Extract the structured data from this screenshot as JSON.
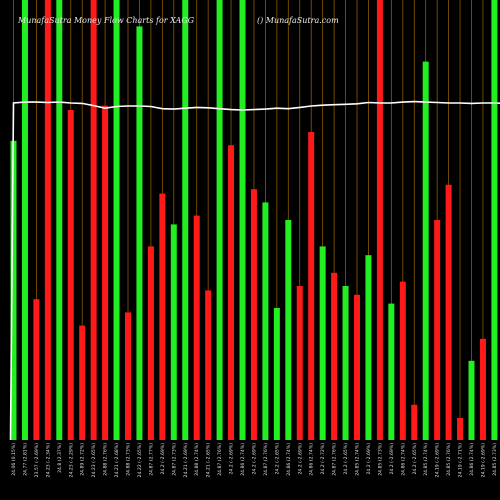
{
  "chart_data": {
    "type": "bar",
    "title": "MunafaSutra Money Flow Charts for XAGG",
    "watermark": "() MunafaSutra.com",
    "colors": {
      "up": "#22ee22",
      "down": "#ff1a1a",
      "background": "#000000",
      "gridline": "#8b5a00",
      "line": "#ffffff"
    },
    "ylim": [
      0,
      100
    ],
    "categories": [
      "24.06 (0.15%)",
      "24.77 (2.81%)",
      "23.57 (-2.69%)",
      "24.23 (-2.34%)",
      "24.8 (2.37%)",
      "24.23 (-2.29%)",
      "24.89 (2.72%)",
      "24.23 (-2.65%)",
      "24.88 (2.76%)",
      "24.21 (-2.68%)",
      "24.88 (2.73%)",
      "24.22 (-2.65%)",
      "24.87 (2.77%)",
      "24.2 (-2.69%)",
      "24.87 (2.73%)",
      "24.21 (-2.69%)",
      "24.88 (2.74%)",
      "24.21 (-2.65%)",
      "24.87 (2.76%)",
      "24.2 (-2.69%)",
      "24.86 (2.74%)",
      "24.2 (-2.69%)",
      "24.87 (2.76%)",
      "24.2 (-2.65%)",
      "24.86 (2.74%)",
      "24.2 (-2.69%)",
      "24.86 (2.74%)",
      "24.2 (-2.72%)",
      "24.87 (2.76%)",
      "24.2 (-2.65%)",
      "24.85 (2.74%)",
      "24.2 (-2.69%)",
      "24.85 (2.73%)",
      "24.2 (-2.69%)",
      "24.86 (2.74%)",
      "24.2 (-2.65%)",
      "24.85 (2.74%)",
      "24.19 (-2.69%)",
      "24.85 (2.76%)",
      "24.19 (-2.71%)",
      "24.86 (2.74%)",
      "24.19 (-2.69%)",
      "24.85 (2.73%)",
      "24.2 (-2.65%)"
    ],
    "series": [
      {
        "direction": [
          "up",
          "up",
          "down",
          "down",
          "up",
          "down",
          "down",
          "down",
          "down",
          "up",
          "down",
          "up",
          "down",
          "down",
          "up",
          "up",
          "down",
          "down",
          "up",
          "down",
          "up",
          "down",
          "up",
          "up",
          "up",
          "down",
          "down",
          "up",
          "down",
          "up",
          "down",
          "up",
          "down",
          "up",
          "down",
          "down",
          "up",
          "down",
          "down",
          "down",
          "up",
          "down",
          "up",
          "down"
        ],
        "values": [
          68,
          100,
          32,
          100,
          100,
          75,
          26,
          100,
          76,
          100,
          29,
          94,
          44,
          56,
          49,
          100,
          51,
          34,
          100,
          67,
          100,
          57,
          54,
          30,
          50,
          35,
          70,
          44,
          38,
          35,
          33,
          42,
          100,
          31,
          36,
          8,
          86,
          50,
          58,
          5,
          18,
          23,
          100,
          100
        ]
      }
    ],
    "line_values": [
      76.6,
      76.8,
      76.8,
      76.7,
      76.8,
      76.6,
      76.5,
      76.0,
      75.4,
      75.8,
      75.9,
      75.9,
      75.8,
      75.3,
      75.2,
      75.4,
      75.6,
      75.5,
      75.3,
      75.1,
      75.0,
      75.1,
      75.2,
      75.4,
      75.3,
      75.6,
      75.9,
      76.1,
      76.2,
      76.3,
      76.4,
      76.7,
      76.6,
      76.6,
      76.8,
      76.9,
      76.8,
      76.7,
      76.6,
      76.6,
      76.5,
      76.6,
      76.6,
      76.5
    ]
  }
}
